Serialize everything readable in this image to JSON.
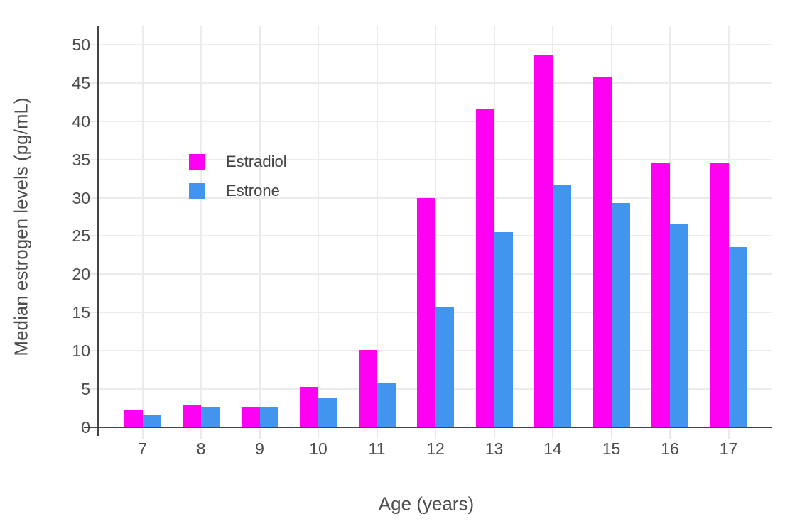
{
  "chart_data": {
    "type": "bar",
    "title": "",
    "xlabel": "Age (years)",
    "ylabel": "Median estrogen levels (pg/mL)",
    "categories": [
      7,
      8,
      9,
      10,
      11,
      12,
      13,
      14,
      15,
      16,
      17
    ],
    "series": [
      {
        "name": "Estradiol",
        "color": "#FF00F2",
        "values": [
          2.2,
          3.0,
          2.6,
          5.3,
          10.1,
          30.0,
          41.6,
          48.6,
          45.8,
          34.5,
          34.6
        ]
      },
      {
        "name": "Estrone",
        "color": "#4295EF",
        "values": [
          1.7,
          2.6,
          2.6,
          3.9,
          5.8,
          15.8,
          25.5,
          31.6,
          29.3,
          26.6,
          23.6
        ]
      }
    ],
    "yticks": [
      0,
      5,
      10,
      15,
      20,
      25,
      30,
      35,
      40,
      45,
      50
    ],
    "ylim": [
      0,
      52.5
    ],
    "grid": true,
    "legend_position": "inside-top-left",
    "colors": {
      "grid_line": "#EBEBEB",
      "axis_line": "#444444",
      "tick_label": "#4D4D4D",
      "axis_title": "#4D4D4D",
      "legend_text": "#444444",
      "background": "#FFFFFF"
    }
  }
}
